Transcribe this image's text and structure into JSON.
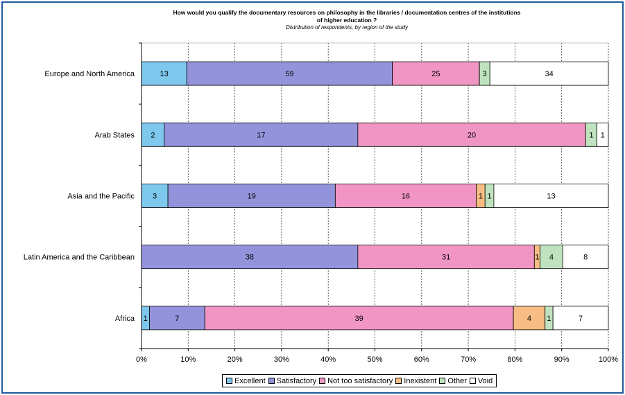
{
  "chart_data": {
    "type": "bar",
    "orientation": "horizontal",
    "stacked": "percent",
    "title": "How would you qualify the documentary resources on philosophy in the libraries / documentation centres of the institutions of higher education ?",
    "title_line1": "How would you qualify the documentary resources on philosophy in the libraries / documentation centres of the institutions",
    "title_line2": "of higher education ?",
    "subtitle": "Distribution of respondents, by region of the study",
    "categories": [
      "Europe and North America",
      "Arab States",
      "Asia and the Pacific",
      "Latin America and the Caribbean",
      "Africa"
    ],
    "series": [
      {
        "name": "Excellent",
        "color": "#7ec8ee",
        "values": [
          13,
          2,
          3,
          0,
          1
        ]
      },
      {
        "name": "Satisfactory",
        "color": "#9393dc",
        "values": [
          59,
          17,
          19,
          38,
          7
        ]
      },
      {
        "name": "Not too satisfactory",
        "color": "#f196c4",
        "values": [
          25,
          20,
          16,
          31,
          39
        ]
      },
      {
        "name": "Inexistent",
        "color": "#f7bd84",
        "values": [
          0,
          0,
          1,
          1,
          4
        ]
      },
      {
        "name": "Other",
        "color": "#bfe3bf",
        "values": [
          3,
          1,
          1,
          4,
          1
        ]
      },
      {
        "name": "Void",
        "color": "#ffffff",
        "values": [
          34,
          1,
          13,
          8,
          7
        ]
      }
    ],
    "x_ticks": [
      "0%",
      "10%",
      "20%",
      "30%",
      "40%",
      "50%",
      "60%",
      "70%",
      "80%",
      "90%",
      "100%"
    ],
    "xlim": [
      0,
      100
    ],
    "grid": "vertical dashed",
    "legend_position": "bottom"
  }
}
